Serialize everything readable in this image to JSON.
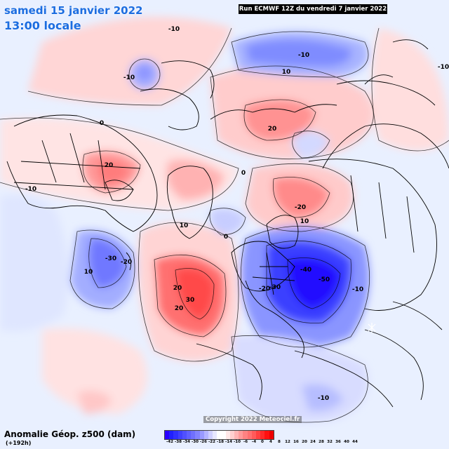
{
  "header": {
    "date": "samedi 15 janvier 2022",
    "time": "13:00 locale",
    "run": "Run ECMWF 12Z du vendredi 7 janvier 2022"
  },
  "footer": {
    "copyright": "Copyright 2022 Meteociel.fr",
    "legend_title": "Anomalie Géop. z500 (dam)",
    "legend_sub": "(+192h)"
  },
  "legend": {
    "ticks": [
      "-42",
      "-38",
      "-34",
      "-30",
      "-26",
      "-22",
      "-18",
      "-14",
      "-10",
      "-6",
      "-4",
      "0",
      "4",
      "8",
      "12",
      "16",
      "20",
      "24",
      "28",
      "32",
      "36",
      "40",
      "44"
    ],
    "colors": [
      "#2a00ff",
      "#2020ff",
      "#3030ff",
      "#4040ff",
      "#5050ff",
      "#6060ff",
      "#7070ff",
      "#8282ff",
      "#9a9aff",
      "#b4b4ff",
      "#cfcfff",
      "#e8e8ff",
      "#ffffff",
      "#ffffff",
      "#ffe8e8",
      "#ffcfcf",
      "#ffb4b4",
      "#ff9a9a",
      "#ff8282",
      "#ff7070",
      "#ff5a5a",
      "#ff4040",
      "#ff2a2a",
      "#ff1010",
      "#ee0000"
    ]
  },
  "contour_labels": [
    {
      "id": "lbl-1",
      "text": "-10"
    },
    {
      "id": "lbl-2",
      "text": "-10"
    },
    {
      "id": "lbl-3",
      "text": "-10"
    },
    {
      "id": "lbl-4",
      "text": "-10"
    },
    {
      "id": "lbl-5",
      "text": "0"
    },
    {
      "id": "lbl-6",
      "text": "-10"
    },
    {
      "id": "lbl-7",
      "text": "20"
    },
    {
      "id": "lbl-8",
      "text": "20"
    },
    {
      "id": "lbl-9",
      "text": "-20"
    },
    {
      "id": "lbl-10",
      "text": "20"
    },
    {
      "id": "lbl-11",
      "text": "10"
    },
    {
      "id": "lbl-12",
      "text": "-30"
    },
    {
      "id": "lbl-13",
      "text": "-20"
    },
    {
      "id": "lbl-14",
      "text": "10"
    },
    {
      "id": "lbl-15",
      "text": "20"
    },
    {
      "id": "lbl-16",
      "text": "30"
    },
    {
      "id": "lbl-17",
      "text": "-40"
    },
    {
      "id": "lbl-18",
      "text": "-50"
    },
    {
      "id": "lbl-19",
      "text": "-20"
    },
    {
      "id": "lbl-20",
      "text": "-30"
    },
    {
      "id": "lbl-21",
      "text": "-10"
    },
    {
      "id": "lbl-22",
      "text": "10"
    },
    {
      "id": "lbl-23",
      "text": "-10"
    },
    {
      "id": "lbl-24",
      "text": "0"
    },
    {
      "id": "lbl-25",
      "text": "0"
    },
    {
      "id": "lbl-26",
      "text": "10"
    }
  ]
}
